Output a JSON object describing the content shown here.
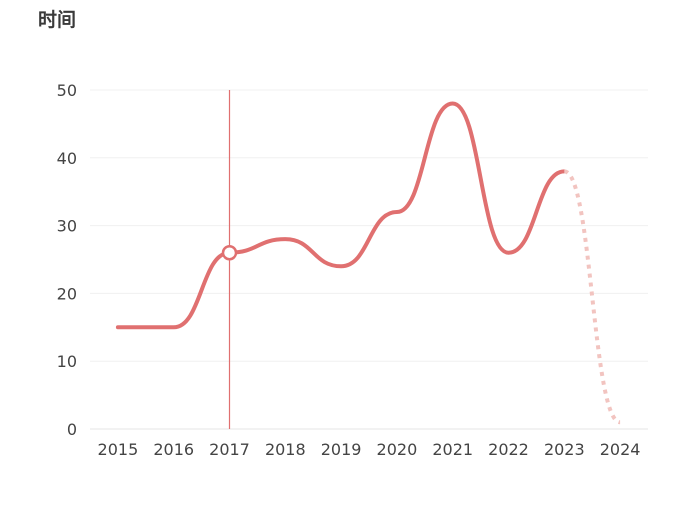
{
  "chart_data": {
    "type": "line",
    "title": "时间",
    "xlabel": "",
    "ylabel": "",
    "categories": [
      "2015",
      "2016",
      "2017",
      "2018",
      "2019",
      "2020",
      "2021",
      "2022",
      "2023",
      "2024"
    ],
    "ylim": [
      0,
      50
    ],
    "yticks": [
      0,
      10,
      20,
      30,
      40,
      50
    ],
    "grid": true,
    "legend": "none",
    "series": [
      {
        "values": [
          15,
          15,
          26,
          28,
          24,
          32,
          48,
          26,
          38,
          1
        ],
        "color": "#e07070",
        "forecast_color": "#f2c4c0",
        "forecast_from_index": 8
      }
    ],
    "highlight": {
      "category": "2017",
      "value": 26,
      "marker_color": "#e07070"
    }
  }
}
